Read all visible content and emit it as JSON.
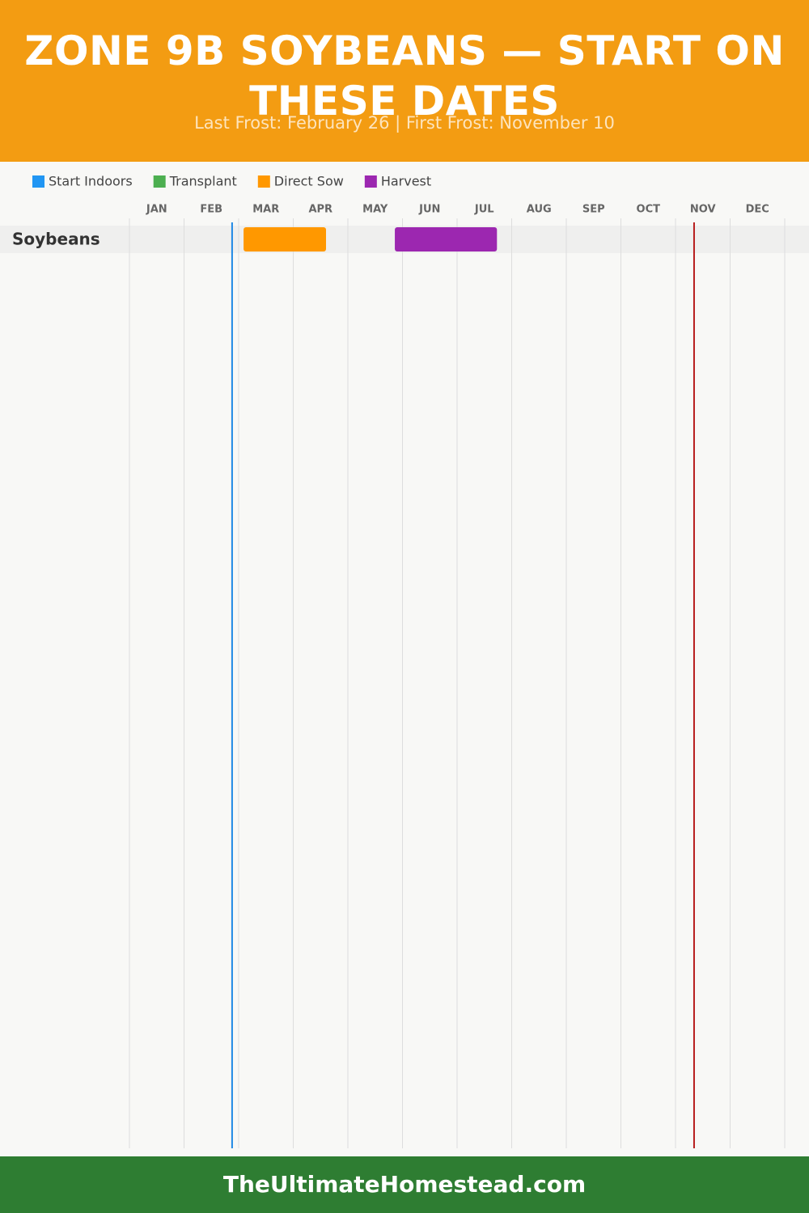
{
  "chart_data": {
    "type": "gantt",
    "title": "ZONE 9B SOYBEANS — START ON THESE DATES",
    "subtitle": "Last Frost: February 26 | First Frost: November 10",
    "xlim": [
      0,
      12
    ],
    "xticks": [
      {
        "value": 0.5,
        "label": "JAN"
      },
      {
        "value": 1.5,
        "label": "FEB"
      },
      {
        "value": 2.5,
        "label": "MAR"
      },
      {
        "value": 3.5,
        "label": "APR"
      },
      {
        "value": 4.5,
        "label": "MAY"
      },
      {
        "value": 5.5,
        "label": "JUN"
      },
      {
        "value": 6.5,
        "label": "JUL"
      },
      {
        "value": 7.5,
        "label": "AUG"
      },
      {
        "value": 8.5,
        "label": "SEP"
      },
      {
        "value": 9.5,
        "label": "OCT"
      },
      {
        "value": 10.5,
        "label": "NOV"
      },
      {
        "value": 11.5,
        "label": "DEC"
      }
    ],
    "categories": [
      "Soybeans"
    ],
    "series": [
      {
        "name": "Start Indoors",
        "color": "#2196f3",
        "values": [
          null
        ]
      },
      {
        "name": "Transplant",
        "color": "#4caf50",
        "values": [
          null
        ]
      },
      {
        "name": "Direct Sow",
        "color": "#ff9800",
        "values": [
          [
            2.09,
            3.6
          ]
        ]
      },
      {
        "name": "Harvest",
        "color": "#9c27b0",
        "values": [
          [
            4.86,
            6.73
          ]
        ]
      }
    ],
    "frost_lines": [
      {
        "value": 1.88,
        "color": "#1e88e5"
      },
      {
        "value": 10.34,
        "color": "#b71c1c"
      }
    ],
    "grid": true
  },
  "footer": "TheUltimateHomestead.com"
}
